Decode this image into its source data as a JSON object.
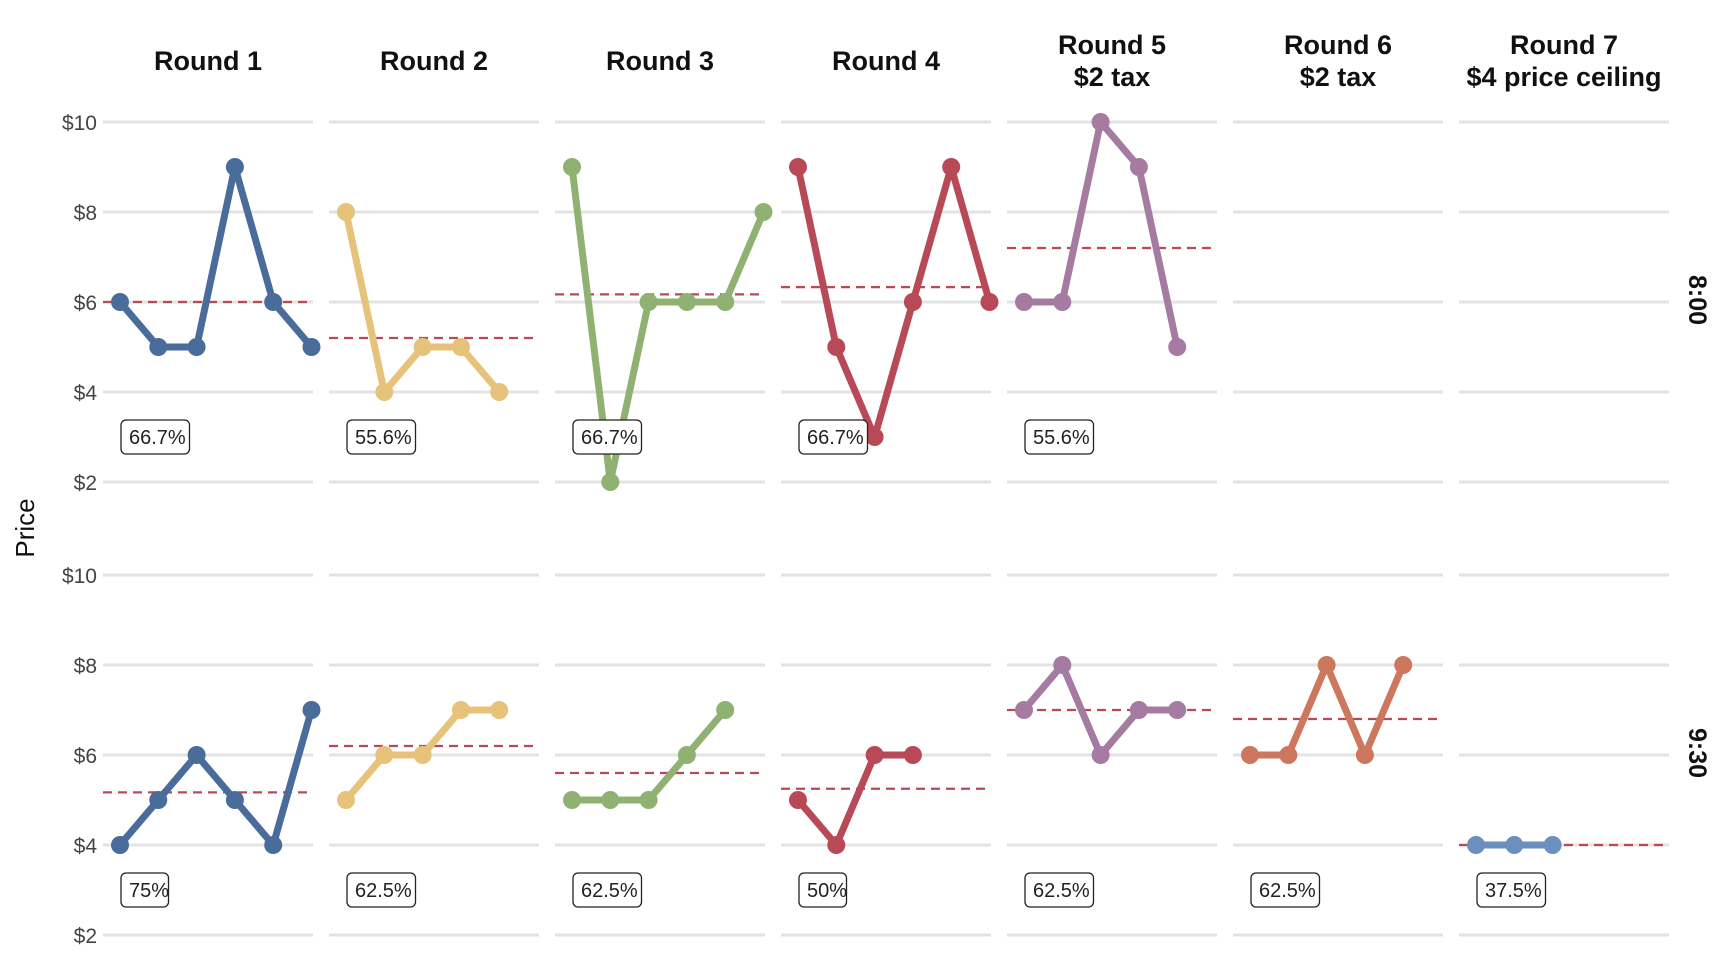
{
  "chart_data": {
    "type": "line",
    "ylabel": "Price",
    "ylim": [
      2,
      10
    ],
    "yticks": [
      2,
      4,
      6,
      8,
      10
    ],
    "ytick_labels": [
      "$2",
      "$4",
      "$6",
      "$8",
      "$10"
    ],
    "grid": true,
    "columns": [
      {
        "title_lines": [
          "Round 1"
        ],
        "color": "#4a6c9b"
      },
      {
        "title_lines": [
          "Round 2"
        ],
        "color": "#e6c27a"
      },
      {
        "title_lines": [
          "Round 3"
        ],
        "color": "#8fb272"
      },
      {
        "title_lines": [
          "Round 4"
        ],
        "color": "#b84a58"
      },
      {
        "title_lines": [
          "Round 5",
          "$2 tax"
        ],
        "color": "#a57ba1"
      },
      {
        "title_lines": [
          "Round 6",
          "$2 tax"
        ],
        "color": "#cc775e"
      },
      {
        "title_lines": [
          "Round 7",
          "$4 price ceiling"
        ],
        "color": "#6b8fbf"
      }
    ],
    "rows": [
      {
        "label": "8:00",
        "panels": [
          {
            "values": [
              6,
              5,
              5,
              9,
              6,
              5
            ],
            "mean": 6.0,
            "rate": "66.7%"
          },
          {
            "values": [
              8,
              4,
              5,
              5,
              4
            ],
            "mean": 5.2,
            "rate": "55.6%"
          },
          {
            "values": [
              9,
              2,
              6,
              6,
              6,
              8
            ],
            "mean": 6.17,
            "rate": "66.7%"
          },
          {
            "values": [
              9,
              5,
              3,
              6,
              9,
              6
            ],
            "mean": 6.33,
            "rate": "66.7%"
          },
          {
            "values": [
              6,
              6,
              10,
              9,
              5
            ],
            "mean": 7.2,
            "rate": "55.6%"
          },
          null,
          null
        ]
      },
      {
        "label": "9:30",
        "panels": [
          {
            "values": [
              4,
              5,
              6,
              5,
              4,
              7
            ],
            "mean": 5.17,
            "rate": "75%"
          },
          {
            "values": [
              5,
              6,
              6,
              7,
              7
            ],
            "mean": 6.2,
            "rate": "62.5%"
          },
          {
            "values": [
              5,
              5,
              5,
              6,
              7
            ],
            "mean": 5.6,
            "rate": "62.5%"
          },
          {
            "values": [
              5,
              4,
              6,
              6
            ],
            "mean": 5.25,
            "rate": "50%"
          },
          {
            "values": [
              7,
              8,
              6,
              7,
              7
            ],
            "mean": 7.0,
            "rate": "62.5%"
          },
          {
            "values": [
              6,
              6,
              8,
              6,
              8
            ],
            "mean": 6.8,
            "rate": "62.5%"
          },
          {
            "values": [
              4,
              4,
              4
            ],
            "mean": 4.0,
            "rate": "37.5%"
          }
        ]
      }
    ],
    "mean_line_color": "#b84a58"
  }
}
